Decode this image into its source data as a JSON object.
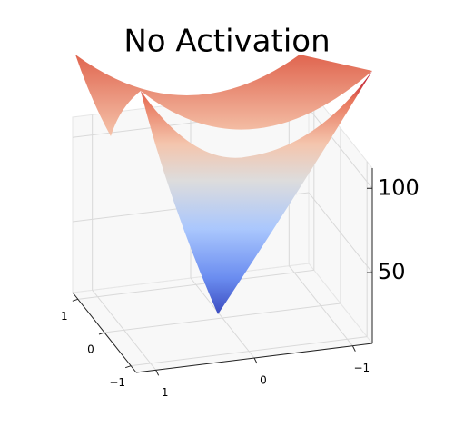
{
  "chart_data": {
    "type": "surface",
    "title": "No Activation",
    "xlim": [
      -1.2,
      1.2
    ],
    "xticks": [
      {
        "value": -1,
        "label": "−1"
      },
      0,
      1
    ],
    "ylim": [
      -1.2,
      1.2
    ],
    "yticks": [
      {
        "value": -1,
        "label": "−1"
      },
      0,
      1
    ],
    "zlim": [
      8,
      112
    ],
    "zticks": [
      50,
      100
    ],
    "grid": true
  }
}
